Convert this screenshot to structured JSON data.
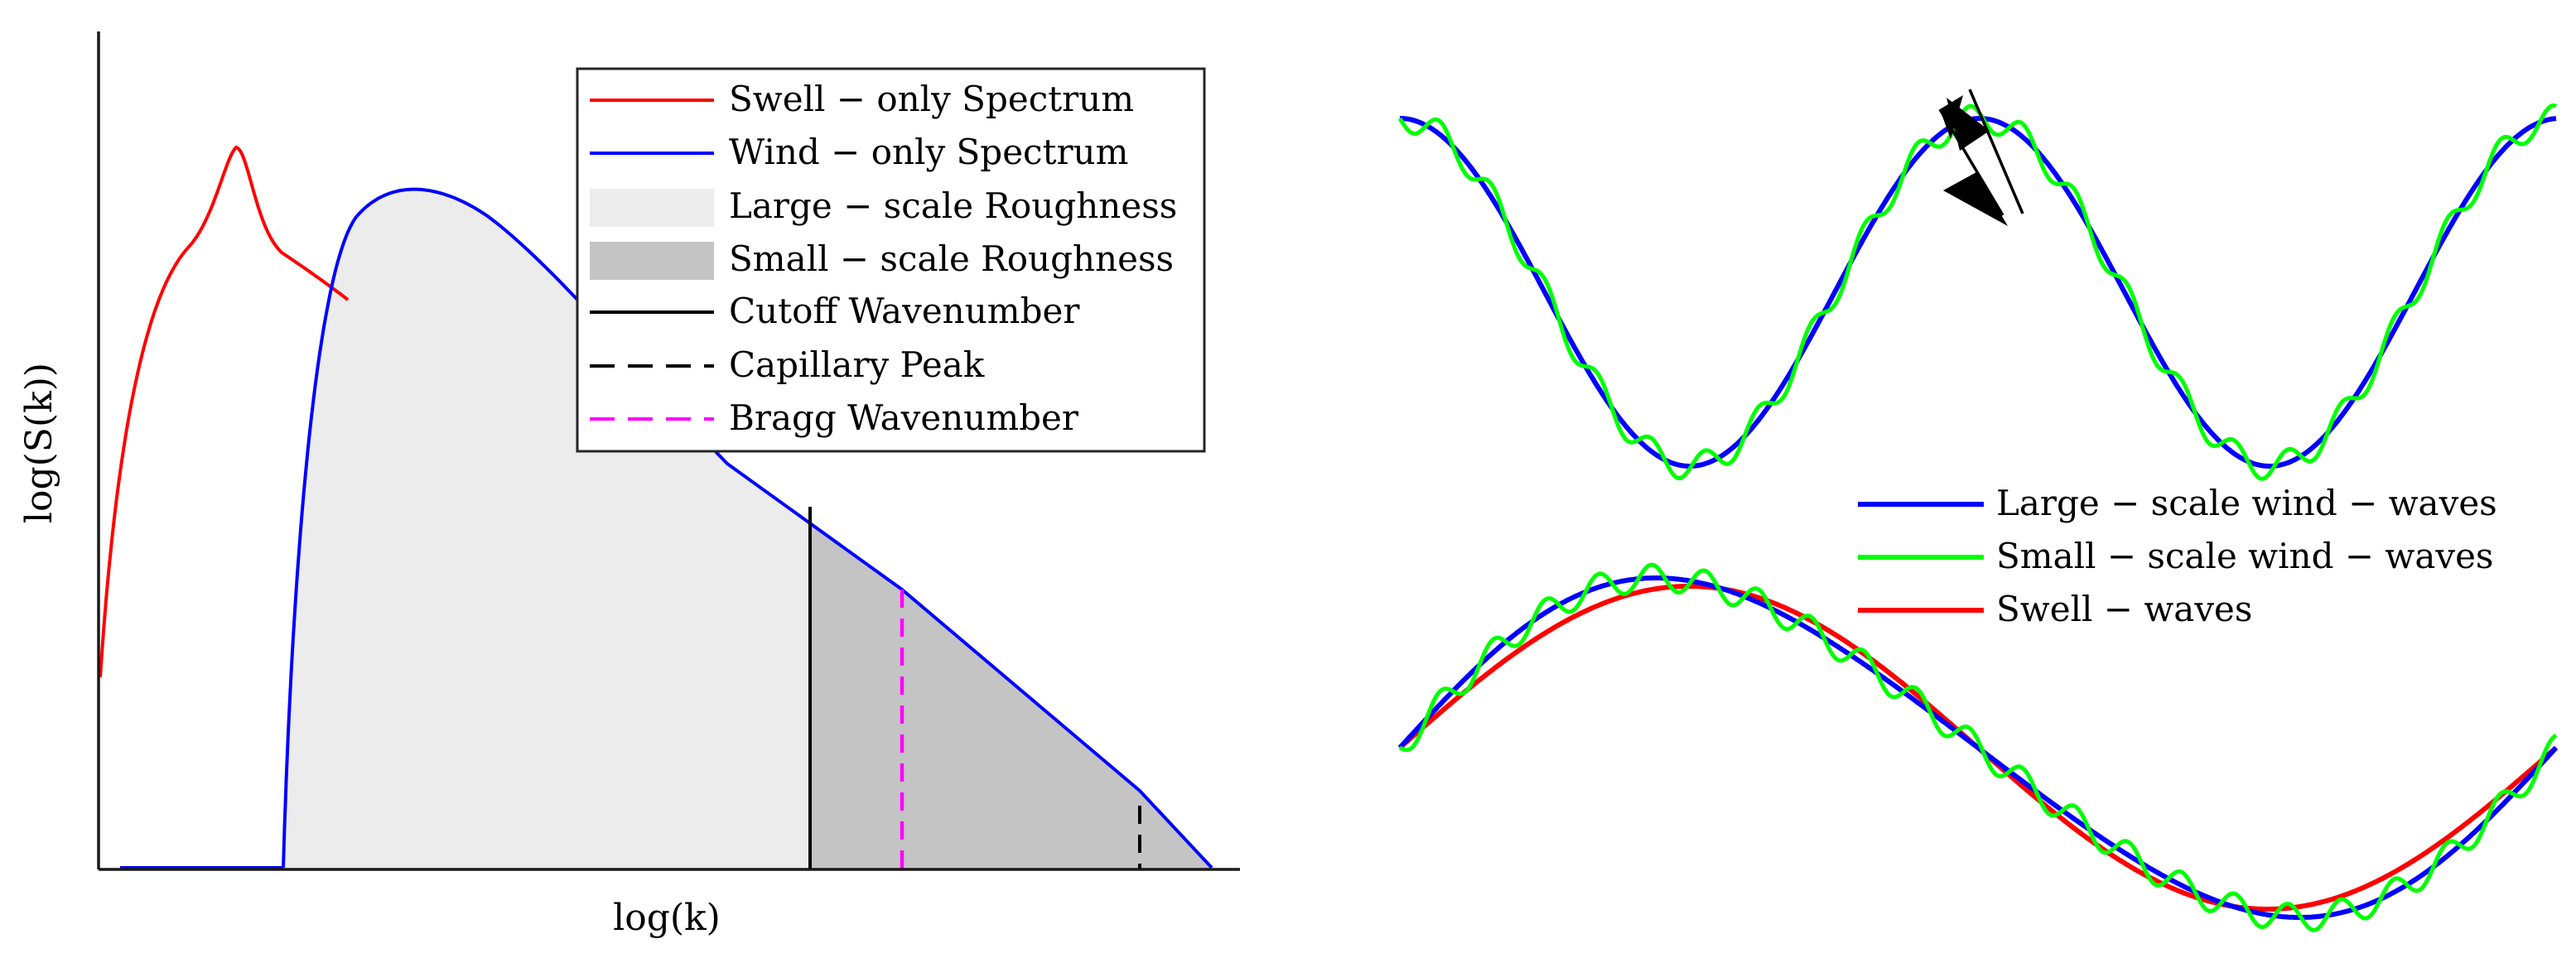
{
  "left_panel": {
    "ylabel": "log(S(k))",
    "xlabel": "log(k)",
    "legend": [
      {
        "label": "Swell − only Spectrum",
        "style": "line",
        "color": "#ff0000"
      },
      {
        "label": "Wind − only Spectrum",
        "style": "line",
        "color": "#0000ff"
      },
      {
        "label": "Large − scale Roughness",
        "style": "patch",
        "color": "#ececec"
      },
      {
        "label": "Small − scale Roughness",
        "style": "patch",
        "color": "#c4c4c4"
      },
      {
        "label": "Cutoff Wavenumber",
        "style": "solid",
        "color": "#000000"
      },
      {
        "label": "Capillary Peak",
        "style": "dashed",
        "color": "#000000"
      },
      {
        "label": "Bragg Wavenumber",
        "style": "dashed",
        "color": "#ff00ff"
      }
    ]
  },
  "right_panel": {
    "legend": [
      {
        "label": "Large − scale wind − waves",
        "color": "#0000ff"
      },
      {
        "label": "Small − scale wind − waves",
        "color": "#00ff00"
      },
      {
        "label": "Swell − waves",
        "color": "#ff0000"
      }
    ]
  },
  "colors": {
    "swell": "#ff0000",
    "wind": "#0000ff",
    "small_scale": "#00ff00",
    "large_fill": "#ececec",
    "small_fill": "#c4c4c4",
    "bragg": "#ff00ff"
  }
}
